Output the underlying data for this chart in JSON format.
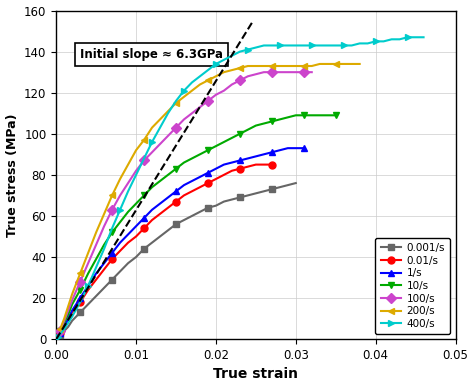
{
  "xlabel": "True strain",
  "ylabel": "True stress (MPa)",
  "xlim": [
    0.0,
    0.05
  ],
  "ylim": [
    0,
    160
  ],
  "xticks": [
    0.0,
    0.01,
    0.02,
    0.03,
    0.04,
    0.05
  ],
  "yticks": [
    0,
    20,
    40,
    60,
    80,
    100,
    120,
    140,
    160
  ],
  "annotation": "Initial slope ≈ 6.3GPa",
  "series": [
    {
      "label": "0.001/s",
      "color": "#666666",
      "marker": "s",
      "x": [
        0.0005,
        0.001,
        0.0015,
        0.002,
        0.003,
        0.004,
        0.005,
        0.006,
        0.007,
        0.008,
        0.009,
        0.01,
        0.011,
        0.012,
        0.013,
        0.014,
        0.015,
        0.016,
        0.017,
        0.018,
        0.019,
        0.02,
        0.021,
        0.022,
        0.023,
        0.024,
        0.025,
        0.026,
        0.027,
        0.028,
        0.029,
        0.03
      ],
      "y": [
        2,
        4,
        6,
        9,
        13,
        17,
        21,
        25,
        29,
        33,
        37,
        40,
        44,
        47,
        50,
        53,
        56,
        58,
        60,
        62,
        64,
        65,
        67,
        68,
        69,
        70,
        71,
        72,
        73,
        74,
        75,
        76
      ]
    },
    {
      "label": "0.01/s",
      "color": "#ff0000",
      "marker": "o",
      "x": [
        0.0005,
        0.001,
        0.0015,
        0.002,
        0.003,
        0.004,
        0.005,
        0.006,
        0.007,
        0.008,
        0.009,
        0.01,
        0.011,
        0.012,
        0.013,
        0.014,
        0.015,
        0.016,
        0.017,
        0.018,
        0.019,
        0.02,
        0.021,
        0.022,
        0.023,
        0.024,
        0.025,
        0.026,
        0.027
      ],
      "y": [
        3,
        6,
        9,
        13,
        18,
        24,
        29,
        34,
        39,
        43,
        47,
        50,
        54,
        58,
        61,
        64,
        67,
        70,
        72,
        74,
        76,
        78,
        80,
        82,
        83,
        84,
        85,
        85,
        85
      ]
    },
    {
      "label": "1/s",
      "color": "#0000ff",
      "marker": "^",
      "x": [
        0.0005,
        0.001,
        0.0015,
        0.002,
        0.003,
        0.004,
        0.005,
        0.006,
        0.007,
        0.008,
        0.009,
        0.01,
        0.011,
        0.012,
        0.013,
        0.014,
        0.015,
        0.016,
        0.017,
        0.018,
        0.019,
        0.02,
        0.021,
        0.022,
        0.023,
        0.024,
        0.025,
        0.026,
        0.027,
        0.028,
        0.029,
        0.03,
        0.031
      ],
      "y": [
        3,
        6,
        10,
        14,
        20,
        26,
        32,
        37,
        42,
        47,
        51,
        55,
        59,
        63,
        66,
        69,
        72,
        75,
        77,
        79,
        81,
        83,
        85,
        86,
        87,
        88,
        89,
        90,
        91,
        92,
        93,
        93,
        93
      ]
    },
    {
      "label": "10/s",
      "color": "#00aa00",
      "marker": "v",
      "x": [
        0.0005,
        0.001,
        0.0015,
        0.002,
        0.003,
        0.004,
        0.005,
        0.006,
        0.007,
        0.008,
        0.009,
        0.01,
        0.011,
        0.012,
        0.013,
        0.014,
        0.015,
        0.016,
        0.017,
        0.018,
        0.019,
        0.02,
        0.021,
        0.022,
        0.023,
        0.024,
        0.025,
        0.026,
        0.027,
        0.028,
        0.029,
        0.03,
        0.031,
        0.032,
        0.033,
        0.034,
        0.035
      ],
      "y": [
        4,
        8,
        12,
        17,
        24,
        32,
        39,
        46,
        52,
        57,
        62,
        66,
        70,
        74,
        77,
        80,
        83,
        86,
        88,
        90,
        92,
        94,
        96,
        98,
        100,
        102,
        104,
        105,
        106,
        107,
        108,
        109,
        109,
        109,
        109,
        109,
        109
      ]
    },
    {
      "label": "100/s",
      "color": "#cc44cc",
      "marker": "D",
      "x": [
        0.0005,
        0.001,
        0.0015,
        0.002,
        0.003,
        0.004,
        0.005,
        0.006,
        0.007,
        0.008,
        0.009,
        0.01,
        0.011,
        0.012,
        0.013,
        0.014,
        0.015,
        0.016,
        0.017,
        0.018,
        0.019,
        0.02,
        0.021,
        0.022,
        0.023,
        0.024,
        0.025,
        0.026,
        0.027,
        0.028,
        0.029,
        0.03,
        0.031,
        0.032
      ],
      "y": [
        4,
        9,
        14,
        19,
        28,
        37,
        46,
        55,
        63,
        70,
        76,
        82,
        87,
        91,
        95,
        99,
        103,
        107,
        110,
        113,
        116,
        119,
        121,
        124,
        126,
        128,
        129,
        130,
        130,
        130,
        130,
        130,
        130,
        130
      ]
    },
    {
      "label": "200/s",
      "color": "#ddaa00",
      "marker": "<",
      "x": [
        0.0005,
        0.001,
        0.0015,
        0.002,
        0.003,
        0.004,
        0.005,
        0.006,
        0.007,
        0.008,
        0.009,
        0.01,
        0.011,
        0.012,
        0.013,
        0.014,
        0.015,
        0.016,
        0.017,
        0.018,
        0.019,
        0.02,
        0.021,
        0.022,
        0.023,
        0.024,
        0.025,
        0.026,
        0.027,
        0.028,
        0.029,
        0.03,
        0.031,
        0.032,
        0.033,
        0.034,
        0.035,
        0.036,
        0.037,
        0.038
      ],
      "y": [
        5,
        10,
        16,
        22,
        32,
        42,
        52,
        61,
        70,
        78,
        85,
        92,
        97,
        103,
        107,
        111,
        115,
        118,
        121,
        124,
        126,
        128,
        130,
        131,
        132,
        133,
        133,
        133,
        133,
        133,
        133,
        133,
        133,
        133,
        134,
        134,
        134,
        134,
        134,
        134
      ]
    },
    {
      "label": "400/s",
      "color": "#00cccc",
      "marker": ">",
      "x": [
        0.0002,
        0.001,
        0.002,
        0.003,
        0.004,
        0.005,
        0.006,
        0.007,
        0.008,
        0.009,
        0.01,
        0.011,
        0.012,
        0.013,
        0.014,
        0.015,
        0.016,
        0.017,
        0.018,
        0.019,
        0.02,
        0.021,
        0.022,
        0.023,
        0.024,
        0.025,
        0.026,
        0.027,
        0.028,
        0.029,
        0.03,
        0.031,
        0.032,
        0.033,
        0.034,
        0.035,
        0.036,
        0.037,
        0.038,
        0.039,
        0.04,
        0.041,
        0.042,
        0.043,
        0.044,
        0.045,
        0.046
      ],
      "y": [
        1,
        5,
        11,
        18,
        26,
        35,
        44,
        54,
        63,
        72,
        80,
        88,
        96,
        103,
        110,
        116,
        121,
        125,
        128,
        131,
        134,
        136,
        138,
        140,
        141,
        142,
        143,
        143,
        143,
        143,
        143,
        143,
        143,
        143,
        143,
        143,
        143,
        143,
        144,
        144,
        145,
        145,
        146,
        146,
        147,
        147,
        147
      ]
    }
  ],
  "dashed_line": {
    "x": [
      0.0,
      0.0245
    ],
    "y": [
      0.0,
      154.0
    ],
    "color": "black",
    "linestyle": "--",
    "linewidth": 1.5
  },
  "background_color": "#ffffff",
  "grid": true,
  "marker_every": 4,
  "marker_size": 5,
  "linewidth": 1.5
}
